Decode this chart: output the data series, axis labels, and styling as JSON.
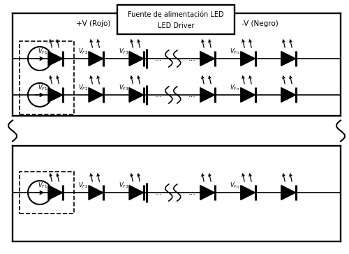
{
  "box_label_line1": "Fuente de alimentación LED",
  "box_label_line2": "LED Driver",
  "pos_label": "+V (Rojo)",
  "neg_label": "-V (Negro)",
  "background_color": "#ffffff",
  "line_color": "#000000",
  "lw": 1.2,
  "fig_width": 5.0,
  "fig_height": 3.64,
  "dpi": 100
}
